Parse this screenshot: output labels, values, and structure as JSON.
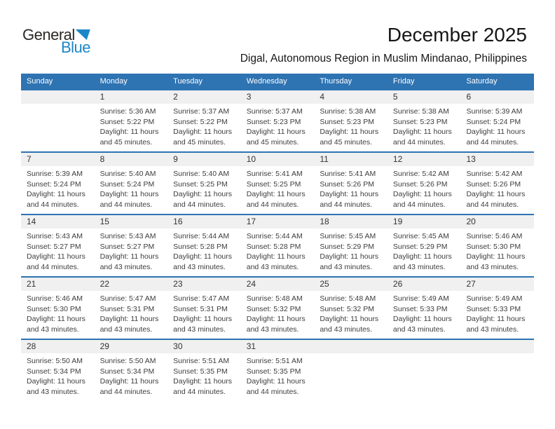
{
  "logo": {
    "text_top": "General",
    "text_bottom": "Blue"
  },
  "header": {
    "title": "December 2025",
    "subtitle": "Digal, Autonomous Region in Muslim Mindanao, Philippines"
  },
  "colors": {
    "header_bar": "#2e73b2",
    "week_divider": "#2e73b2",
    "day_band": "#f0f0f0",
    "logo_blue": "#1b86c8",
    "logo_dark": "#2b2927",
    "body_text": "#3d3d3d"
  },
  "calendar": {
    "weekdays": [
      "Sunday",
      "Monday",
      "Tuesday",
      "Wednesday",
      "Thursday",
      "Friday",
      "Saturday"
    ],
    "weeks": [
      [
        null,
        {
          "day": "1",
          "sunrise": "Sunrise: 5:36 AM",
          "sunset": "Sunset: 5:22 PM",
          "daylight": "Daylight: 11 hours and 45 minutes."
        },
        {
          "day": "2",
          "sunrise": "Sunrise: 5:37 AM",
          "sunset": "Sunset: 5:22 PM",
          "daylight": "Daylight: 11 hours and 45 minutes."
        },
        {
          "day": "3",
          "sunrise": "Sunrise: 5:37 AM",
          "sunset": "Sunset: 5:23 PM",
          "daylight": "Daylight: 11 hours and 45 minutes."
        },
        {
          "day": "4",
          "sunrise": "Sunrise: 5:38 AM",
          "sunset": "Sunset: 5:23 PM",
          "daylight": "Daylight: 11 hours and 45 minutes."
        },
        {
          "day": "5",
          "sunrise": "Sunrise: 5:38 AM",
          "sunset": "Sunset: 5:23 PM",
          "daylight": "Daylight: 11 hours and 44 minutes."
        },
        {
          "day": "6",
          "sunrise": "Sunrise: 5:39 AM",
          "sunset": "Sunset: 5:24 PM",
          "daylight": "Daylight: 11 hours and 44 minutes."
        }
      ],
      [
        {
          "day": "7",
          "sunrise": "Sunrise: 5:39 AM",
          "sunset": "Sunset: 5:24 PM",
          "daylight": "Daylight: 11 hours and 44 minutes."
        },
        {
          "day": "8",
          "sunrise": "Sunrise: 5:40 AM",
          "sunset": "Sunset: 5:24 PM",
          "daylight": "Daylight: 11 hours and 44 minutes."
        },
        {
          "day": "9",
          "sunrise": "Sunrise: 5:40 AM",
          "sunset": "Sunset: 5:25 PM",
          "daylight": "Daylight: 11 hours and 44 minutes."
        },
        {
          "day": "10",
          "sunrise": "Sunrise: 5:41 AM",
          "sunset": "Sunset: 5:25 PM",
          "daylight": "Daylight: 11 hours and 44 minutes."
        },
        {
          "day": "11",
          "sunrise": "Sunrise: 5:41 AM",
          "sunset": "Sunset: 5:26 PM",
          "daylight": "Daylight: 11 hours and 44 minutes."
        },
        {
          "day": "12",
          "sunrise": "Sunrise: 5:42 AM",
          "sunset": "Sunset: 5:26 PM",
          "daylight": "Daylight: 11 hours and 44 minutes."
        },
        {
          "day": "13",
          "sunrise": "Sunrise: 5:42 AM",
          "sunset": "Sunset: 5:26 PM",
          "daylight": "Daylight: 11 hours and 44 minutes."
        }
      ],
      [
        {
          "day": "14",
          "sunrise": "Sunrise: 5:43 AM",
          "sunset": "Sunset: 5:27 PM",
          "daylight": "Daylight: 11 hours and 44 minutes."
        },
        {
          "day": "15",
          "sunrise": "Sunrise: 5:43 AM",
          "sunset": "Sunset: 5:27 PM",
          "daylight": "Daylight: 11 hours and 43 minutes."
        },
        {
          "day": "16",
          "sunrise": "Sunrise: 5:44 AM",
          "sunset": "Sunset: 5:28 PM",
          "daylight": "Daylight: 11 hours and 43 minutes."
        },
        {
          "day": "17",
          "sunrise": "Sunrise: 5:44 AM",
          "sunset": "Sunset: 5:28 PM",
          "daylight": "Daylight: 11 hours and 43 minutes."
        },
        {
          "day": "18",
          "sunrise": "Sunrise: 5:45 AM",
          "sunset": "Sunset: 5:29 PM",
          "daylight": "Daylight: 11 hours and 43 minutes."
        },
        {
          "day": "19",
          "sunrise": "Sunrise: 5:45 AM",
          "sunset": "Sunset: 5:29 PM",
          "daylight": "Daylight: 11 hours and 43 minutes."
        },
        {
          "day": "20",
          "sunrise": "Sunrise: 5:46 AM",
          "sunset": "Sunset: 5:30 PM",
          "daylight": "Daylight: 11 hours and 43 minutes."
        }
      ],
      [
        {
          "day": "21",
          "sunrise": "Sunrise: 5:46 AM",
          "sunset": "Sunset: 5:30 PM",
          "daylight": "Daylight: 11 hours and 43 minutes."
        },
        {
          "day": "22",
          "sunrise": "Sunrise: 5:47 AM",
          "sunset": "Sunset: 5:31 PM",
          "daylight": "Daylight: 11 hours and 43 minutes."
        },
        {
          "day": "23",
          "sunrise": "Sunrise: 5:47 AM",
          "sunset": "Sunset: 5:31 PM",
          "daylight": "Daylight: 11 hours and 43 minutes."
        },
        {
          "day": "24",
          "sunrise": "Sunrise: 5:48 AM",
          "sunset": "Sunset: 5:32 PM",
          "daylight": "Daylight: 11 hours and 43 minutes."
        },
        {
          "day": "25",
          "sunrise": "Sunrise: 5:48 AM",
          "sunset": "Sunset: 5:32 PM",
          "daylight": "Daylight: 11 hours and 43 minutes."
        },
        {
          "day": "26",
          "sunrise": "Sunrise: 5:49 AM",
          "sunset": "Sunset: 5:33 PM",
          "daylight": "Daylight: 11 hours and 43 minutes."
        },
        {
          "day": "27",
          "sunrise": "Sunrise: 5:49 AM",
          "sunset": "Sunset: 5:33 PM",
          "daylight": "Daylight: 11 hours and 43 minutes."
        }
      ],
      [
        {
          "day": "28",
          "sunrise": "Sunrise: 5:50 AM",
          "sunset": "Sunset: 5:34 PM",
          "daylight": "Daylight: 11 hours and 43 minutes."
        },
        {
          "day": "29",
          "sunrise": "Sunrise: 5:50 AM",
          "sunset": "Sunset: 5:34 PM",
          "daylight": "Daylight: 11 hours and 44 minutes."
        },
        {
          "day": "30",
          "sunrise": "Sunrise: 5:51 AM",
          "sunset": "Sunset: 5:35 PM",
          "daylight": "Daylight: 11 hours and 44 minutes."
        },
        {
          "day": "31",
          "sunrise": "Sunrise: 5:51 AM",
          "sunset": "Sunset: 5:35 PM",
          "daylight": "Daylight: 11 hours and 44 minutes."
        },
        null,
        null,
        null
      ]
    ]
  }
}
